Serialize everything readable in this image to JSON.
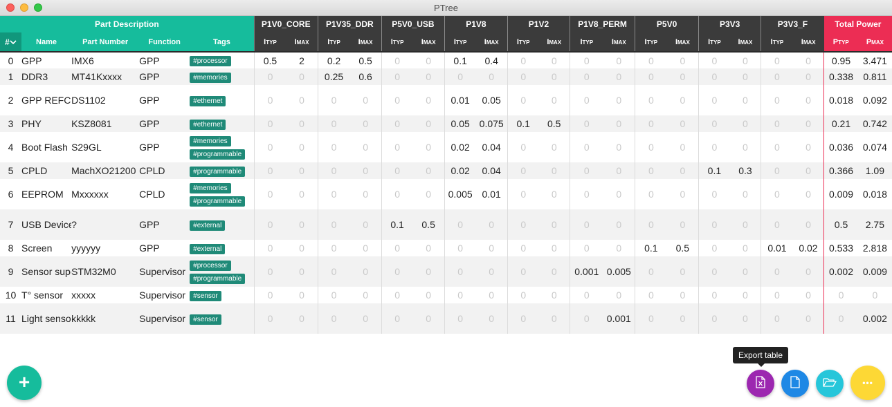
{
  "window": {
    "title": "PTree"
  },
  "headers": {
    "hash": "#",
    "part_group": "Part Description",
    "name": "Name",
    "part_number": "Part Number",
    "function": "Function",
    "tags": "Tags",
    "total_power": "Total Power",
    "typ_sub": "TYP",
    "max_sub": "MAX",
    "i": "I",
    "p": "P"
  },
  "rails": [
    "P1V0_CORE",
    "P1V35_DDR",
    "P5V0_USB",
    "P1V8",
    "P1V2",
    "P1V8_PERM",
    "P5V0",
    "P3V3",
    "P3V3_F"
  ],
  "rows": [
    {
      "idx": "0",
      "name": "GPP",
      "pn": "IMX6",
      "func": "GPP",
      "tags": [
        "#processor"
      ],
      "vals": [
        "0.5",
        "2",
        "0.2",
        "0.5",
        "0",
        "0",
        "0.1",
        "0.4",
        "0",
        "0",
        "0",
        "0",
        "0",
        "0",
        "0",
        "0",
        "0",
        "0"
      ],
      "ptyp": "0.95",
      "pmax": "3.471"
    },
    {
      "idx": "1",
      "name": "DDR3",
      "pn": "MT41Kxxxx",
      "func": "GPP",
      "tags": [
        "#memories"
      ],
      "vals": [
        "0",
        "0",
        "0.25",
        "0.6",
        "0",
        "0",
        "0",
        "0",
        "0",
        "0",
        "0",
        "0",
        "0",
        "0",
        "0",
        "0",
        "0",
        "0"
      ],
      "ptyp": "0.338",
      "pmax": "0.811"
    },
    {
      "idx": "2",
      "name": "GPP REFCLK",
      "pn": "DS1102",
      "func": "GPP",
      "tags": [
        "#ethernet"
      ],
      "vals": [
        "0",
        "0",
        "0",
        "0",
        "0",
        "0",
        "0.01",
        "0.05",
        "0",
        "0",
        "0",
        "0",
        "0",
        "0",
        "0",
        "0",
        "0",
        "0"
      ],
      "ptyp": "0.018",
      "pmax": "0.092"
    },
    {
      "idx": "3",
      "name": "PHY",
      "pn": "KSZ8081",
      "func": "GPP",
      "tags": [
        "#ethernet"
      ],
      "vals": [
        "0",
        "0",
        "0",
        "0",
        "0",
        "0",
        "0.05",
        "0.075",
        "0.1",
        "0.5",
        "0",
        "0",
        "0",
        "0",
        "0",
        "0",
        "0",
        "0"
      ],
      "ptyp": "0.21",
      "pmax": "0.742"
    },
    {
      "idx": "4",
      "name": "Boot Flash",
      "pn": "S29GL",
      "func": "GPP",
      "tags": [
        "#memories",
        "#programmable"
      ],
      "vals": [
        "0",
        "0",
        "0",
        "0",
        "0",
        "0",
        "0.02",
        "0.04",
        "0",
        "0",
        "0",
        "0",
        "0",
        "0",
        "0",
        "0",
        "0",
        "0"
      ],
      "ptyp": "0.036",
      "pmax": "0.074"
    },
    {
      "idx": "5",
      "name": "CPLD",
      "pn": "MachXO21200",
      "func": "CPLD",
      "tags": [
        "#programmable"
      ],
      "vals": [
        "0",
        "0",
        "0",
        "0",
        "0",
        "0",
        "0.02",
        "0.04",
        "0",
        "0",
        "0",
        "0",
        "0",
        "0",
        "0.1",
        "0.3",
        "0",
        "0"
      ],
      "ptyp": "0.366",
      "pmax": "1.09"
    },
    {
      "idx": "6",
      "name": "EEPROM",
      "pn": "Mxxxxxx",
      "func": "CPLD",
      "tags": [
        "#memories",
        "#programmable"
      ],
      "vals": [
        "0",
        "0",
        "0",
        "0",
        "0",
        "0",
        "0.005",
        "0.01",
        "0",
        "0",
        "0",
        "0",
        "0",
        "0",
        "0",
        "0",
        "0",
        "0"
      ],
      "ptyp": "0.009",
      "pmax": "0.018"
    },
    {
      "idx": "7",
      "name": "USB Device",
      "pn": "?",
      "func": "GPP",
      "tags": [
        "#external"
      ],
      "vals": [
        "0",
        "0",
        "0",
        "0",
        "0.1",
        "0.5",
        "0",
        "0",
        "0",
        "0",
        "0",
        "0",
        "0",
        "0",
        "0",
        "0",
        "0",
        "0"
      ],
      "ptyp": "0.5",
      "pmax": "2.75"
    },
    {
      "idx": "8",
      "name": "Screen",
      "pn": "yyyyyy",
      "func": "GPP",
      "tags": [
        "#external"
      ],
      "vals": [
        "0",
        "0",
        "0",
        "0",
        "0",
        "0",
        "0",
        "0",
        "0",
        "0",
        "0",
        "0",
        "0.1",
        "0.5",
        "0",
        "0",
        "0.01",
        "0.02"
      ],
      "ptyp": "0.533",
      "pmax": "2.818"
    },
    {
      "idx": "9",
      "name": "Sensor supervisor",
      "pn": "STM32M0",
      "func": "Supervisor",
      "tags": [
        "#processor",
        "#programmable"
      ],
      "vals": [
        "0",
        "0",
        "0",
        "0",
        "0",
        "0",
        "0",
        "0",
        "0",
        "0",
        "0.001",
        "0.005",
        "0",
        "0",
        "0",
        "0",
        "0",
        "0"
      ],
      "ptyp": "0.002",
      "pmax": "0.009"
    },
    {
      "idx": "10",
      "name": "T° sensor",
      "pn": "xxxxx",
      "func": "Supervisor",
      "tags": [
        "#sensor"
      ],
      "vals": [
        "0",
        "0",
        "0",
        "0",
        "0",
        "0",
        "0",
        "0",
        "0",
        "0",
        "0",
        "0",
        "0",
        "0",
        "0",
        "0",
        "0",
        "0"
      ],
      "ptyp": "0",
      "pmax": "0"
    },
    {
      "idx": "11",
      "name": "Light sensor",
      "pn": "kkkkk",
      "func": "Supervisor",
      "tags": [
        "#sensor"
      ],
      "vals": [
        "0",
        "0",
        "0",
        "0",
        "0",
        "0",
        "0",
        "0",
        "0",
        "0",
        "0",
        "0.001",
        "0",
        "0",
        "0",
        "0",
        "0",
        "0"
      ],
      "ptyp": "0",
      "pmax": "0.002"
    }
  ],
  "buttons": {
    "add": "+",
    "export_tooltip": "Export table",
    "more": "•••"
  },
  "colors": {
    "teal": "#16bc9c",
    "dark": "#3b3b3b",
    "red": "#ec2d54",
    "tag": "#1f8a78",
    "purple": "#9c27b0",
    "blue": "#1e88e5",
    "cyan": "#26c6da",
    "yellow": "#fdd835"
  }
}
